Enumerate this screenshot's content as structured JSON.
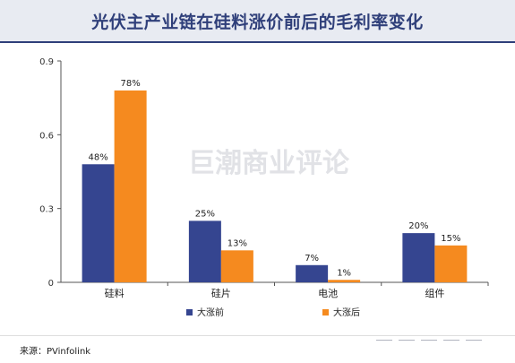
{
  "title": "光伏主产业链在硅料涨价前后的毛利率变化",
  "watermark": "巨潮商业评论",
  "source": "来源：PVinfolink",
  "colors": {
    "before": "#354590",
    "after": "#f58a1f",
    "axis": "#555555",
    "title": "#2f3f7a"
  },
  "chart_data": {
    "type": "bar",
    "title": "光伏主产业链在硅料涨价前后的毛利率变化",
    "categories": [
      "硅料",
      "硅片",
      "电池",
      "组件"
    ],
    "series": [
      {
        "name": "大涨前",
        "values": [
          0.48,
          0.25,
          0.07,
          0.2
        ],
        "labels": [
          "48%",
          "25%",
          "7%",
          "20%"
        ]
      },
      {
        "name": "大涨后",
        "values": [
          0.78,
          0.13,
          0.01,
          0.15
        ],
        "labels": [
          "78%",
          "13%",
          "1%",
          "15%"
        ]
      }
    ],
    "ylim": [
      0,
      0.9
    ],
    "yticks": [
      0,
      0.3,
      0.6,
      0.9
    ],
    "ytick_labels": [
      "0",
      "0.3",
      "0.6",
      "0.9"
    ],
    "legend_position": "bottom",
    "grid": false
  }
}
